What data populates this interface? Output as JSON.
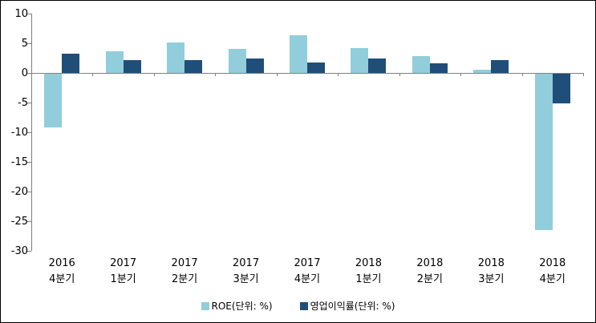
{
  "chart_data": {
    "type": "bar",
    "title": "",
    "xlabel": "",
    "ylabel": "",
    "categories": [
      [
        "2016",
        "4분기"
      ],
      [
        "2017",
        "1분기"
      ],
      [
        "2017",
        "2분기"
      ],
      [
        "2017",
        "3분기"
      ],
      [
        "2017",
        "4분기"
      ],
      [
        "2018",
        "1분기"
      ],
      [
        "2018",
        "2분기"
      ],
      [
        "2018",
        "3분기"
      ],
      [
        "2018",
        "4분기"
      ]
    ],
    "series": [
      {
        "name": "ROE(단위: %)",
        "color": "#92CDDC",
        "values": [
          -9.2,
          3.6,
          5.2,
          4.1,
          6.3,
          4.2,
          2.9,
          0.5,
          -26.5
        ]
      },
      {
        "name": "영업이익률(단위: %)",
        "color": "#1F4E79",
        "values": [
          3.3,
          2.2,
          2.1,
          2.5,
          1.8,
          2.5,
          1.6,
          2.1,
          -5.2
        ]
      }
    ],
    "ylim": [
      -30,
      10
    ],
    "yticks": [
      10,
      5,
      0,
      -5,
      -10,
      -15,
      -20,
      -25,
      -30
    ],
    "grid": false,
    "legend_position": "bottom",
    "axis_color": "#808080",
    "background_color": "#FFFFFF"
  }
}
